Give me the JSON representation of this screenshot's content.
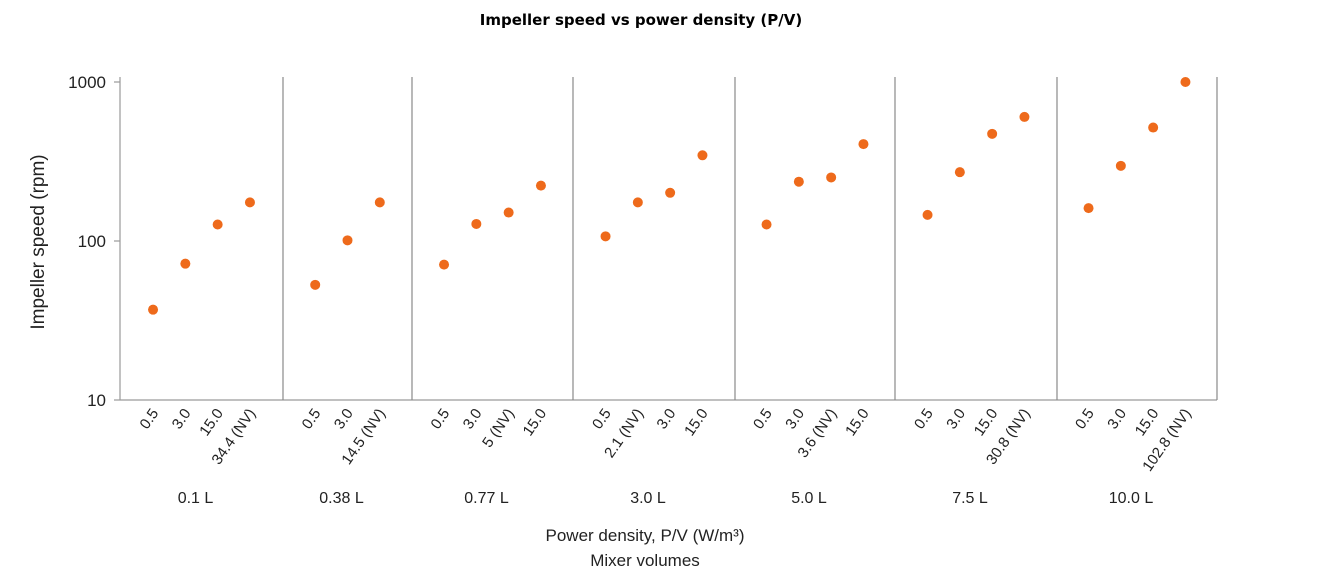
{
  "chart_data": {
    "type": "scatter",
    "title": "Impeller speed vs power density (P/V)",
    "ylabel": "Impeller speed (rpm)",
    "xlabel": "Power density, P/V (W/m³)",
    "xlabel2": "Mixer volumes",
    "yscale": "log",
    "ylim": [
      10,
      1000
    ],
    "yticks": [
      "10",
      "100",
      "1000"
    ],
    "grid": false,
    "legend": "none",
    "marker_color": "#EE6A1B",
    "groups": [
      {
        "label": "0.1 L",
        "points": [
          {
            "x": "0.5",
            "y": 37
          },
          {
            "x": "3.0",
            "y": 72
          },
          {
            "x": "15.0",
            "y": 127
          },
          {
            "x": "34.4 (NV)",
            "y": 175
          }
        ]
      },
      {
        "label": "0.38 L",
        "points": [
          {
            "x": "0.5",
            "y": 53
          },
          {
            "x": "3.0",
            "y": 101
          },
          {
            "x": "14.5 (NV)",
            "y": 175
          }
        ]
      },
      {
        "label": "0.77 L",
        "points": [
          {
            "x": "0.5",
            "y": 71
          },
          {
            "x": "3.0",
            "y": 128
          },
          {
            "x": "5 (NV)",
            "y": 151
          },
          {
            "x": "15.0",
            "y": 223
          }
        ]
      },
      {
        "label": "3.0 L",
        "points": [
          {
            "x": "0.5",
            "y": 107
          },
          {
            "x": "2.1 (NV)",
            "y": 175
          },
          {
            "x": "3.0",
            "y": 201
          },
          {
            "x": "15.0",
            "y": 346
          }
        ]
      },
      {
        "label": "5.0 L",
        "points": [
          {
            "x": "0.5",
            "y": 127
          },
          {
            "x": "3.0",
            "y": 236
          },
          {
            "x": "3.6 (NV)",
            "y": 251
          },
          {
            "x": "15.0",
            "y": 407
          }
        ]
      },
      {
        "label": "7.5 L",
        "points": [
          {
            "x": "0.5",
            "y": 146
          },
          {
            "x": "3.0",
            "y": 271
          },
          {
            "x": "15.0",
            "y": 472
          },
          {
            "x": "30.8 (NV)",
            "y": 603
          }
        ]
      },
      {
        "label": "10.0 L",
        "points": [
          {
            "x": "0.5",
            "y": 161
          },
          {
            "x": "3.0",
            "y": 297
          },
          {
            "x": "15.0",
            "y": 517
          },
          {
            "x": "102.8 (NV)",
            "y": 1000
          }
        ]
      }
    ]
  }
}
